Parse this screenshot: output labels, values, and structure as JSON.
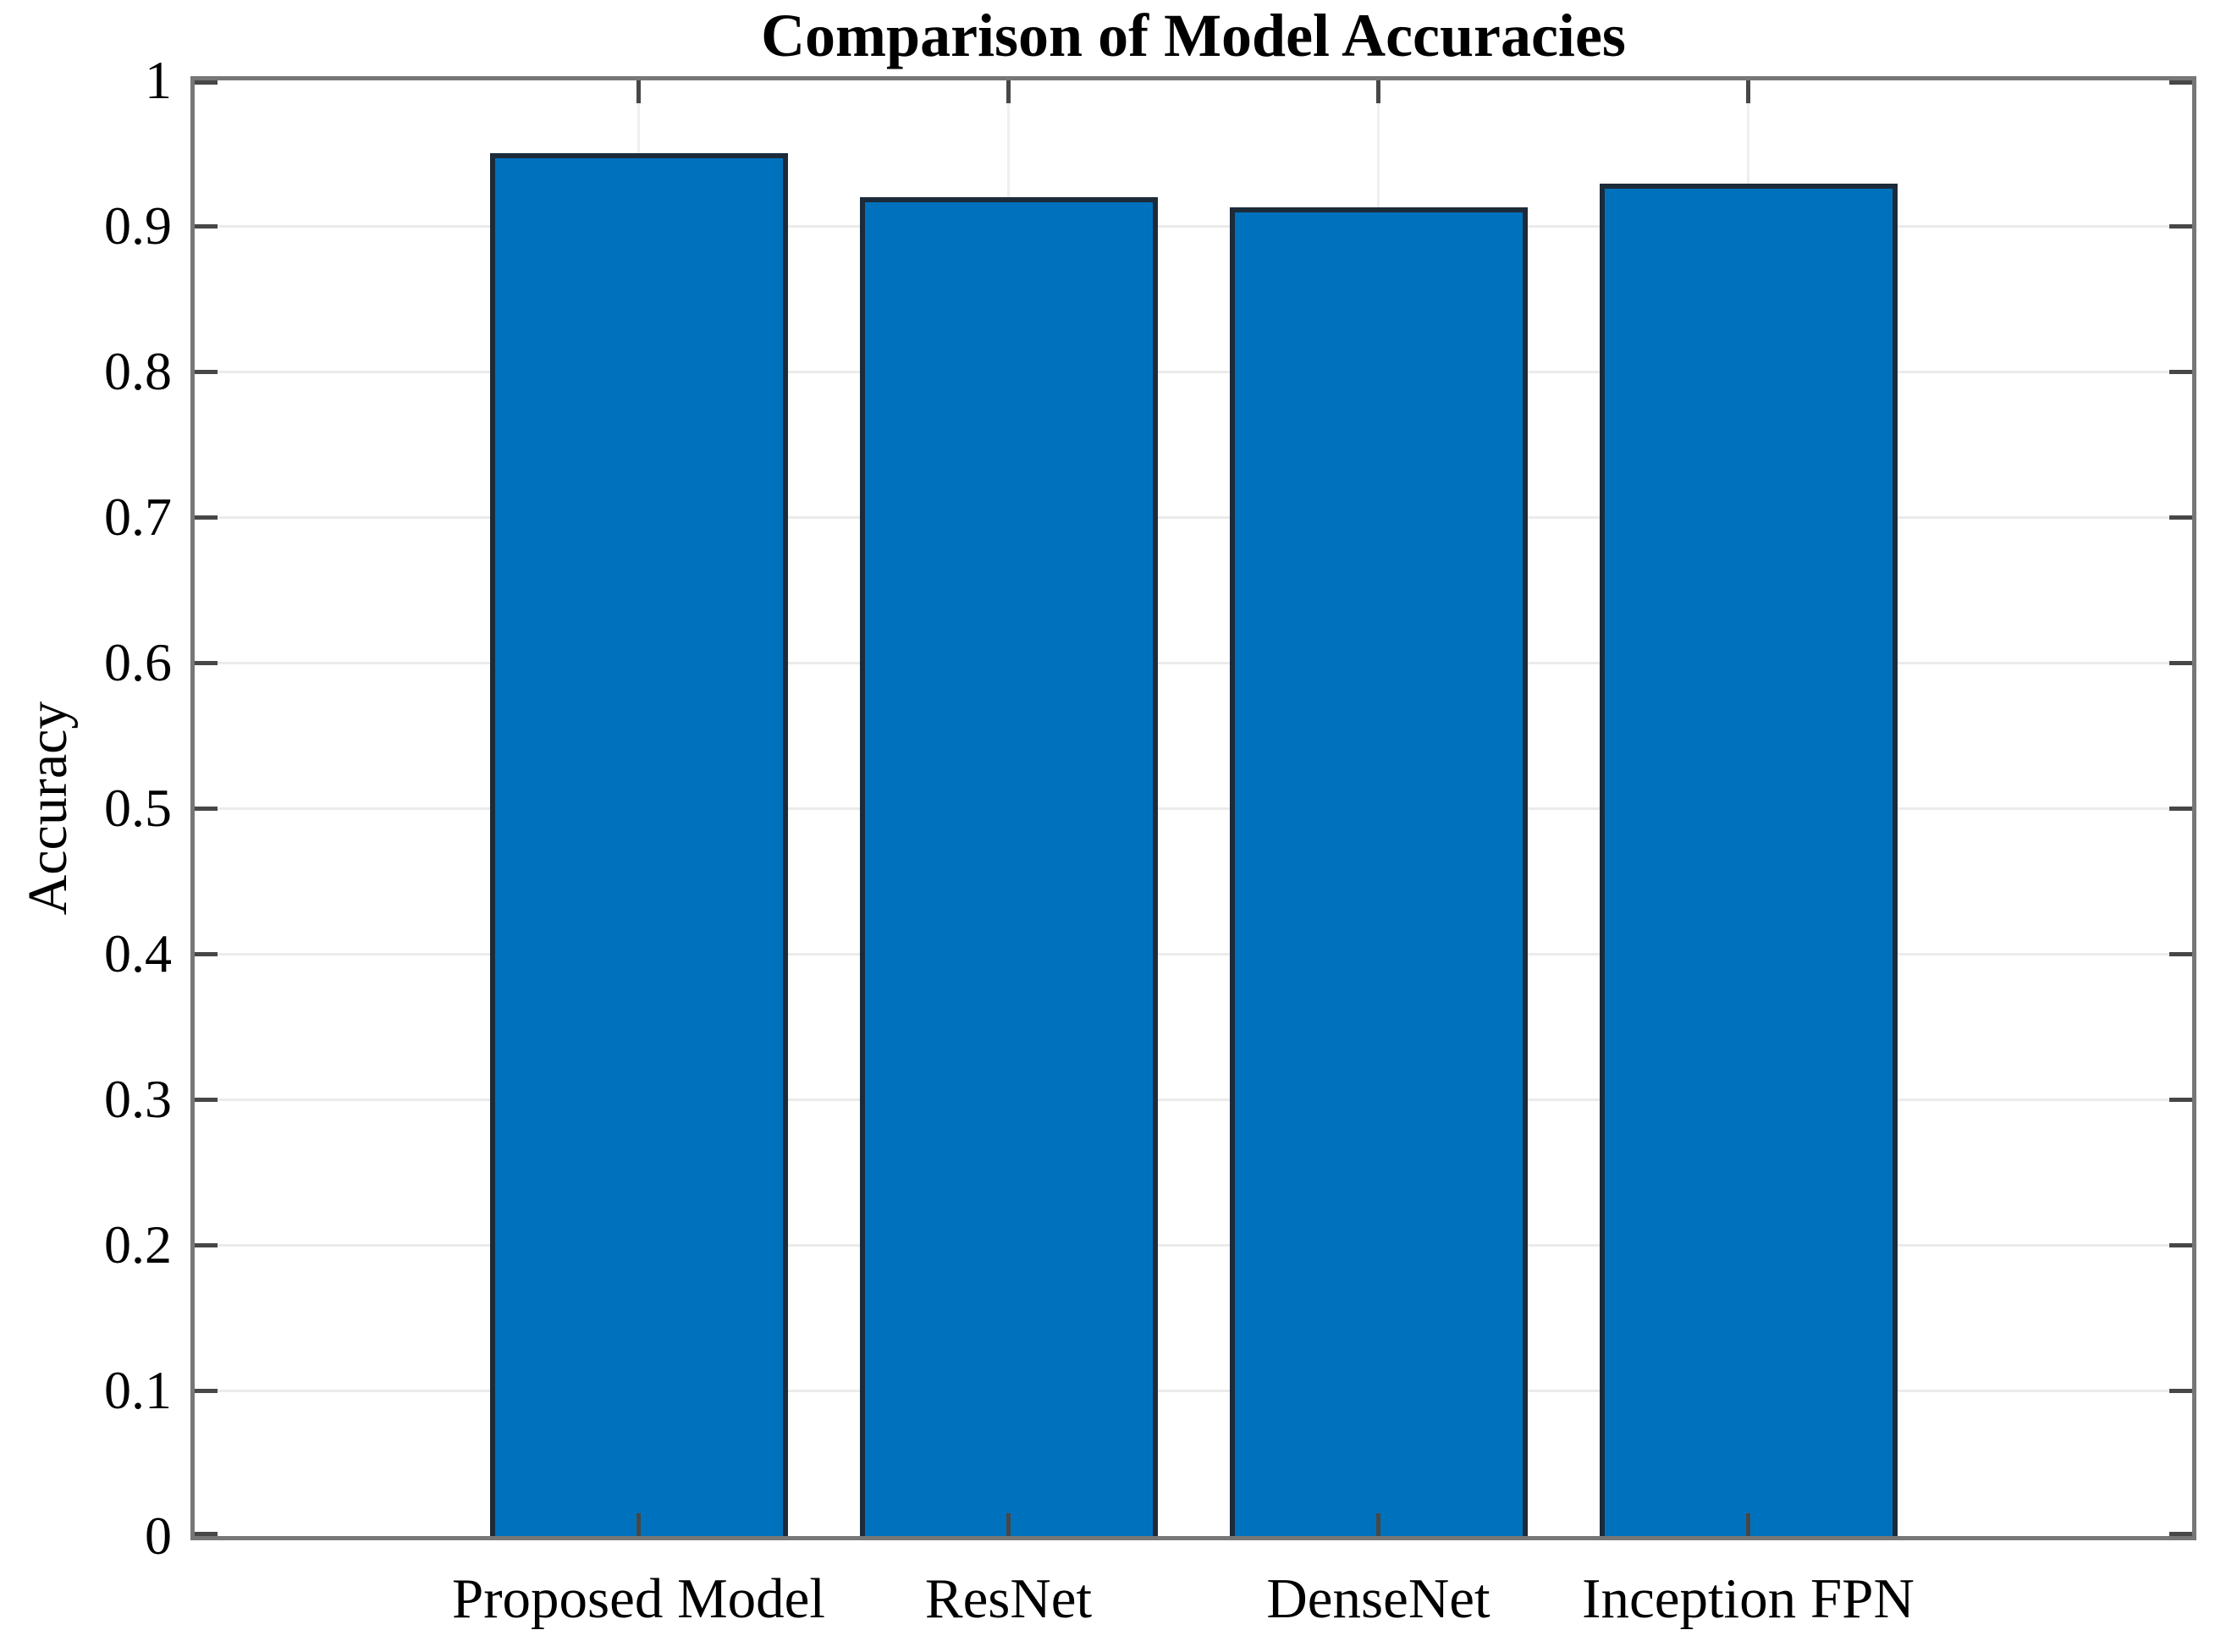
{
  "figure": {
    "background_color": "#ffffff"
  },
  "chart_data": {
    "type": "bar",
    "title": "Comparison of Model Accuracies",
    "xlabel": "",
    "ylabel": "Accuracy",
    "categories": [
      "Proposed Model",
      "ResNet",
      "DenseNet",
      "Inception FPN"
    ],
    "values": [
      0.95,
      0.92,
      0.913,
      0.929
    ],
    "ylim": [
      0,
      1
    ],
    "yticks": [
      0,
      0.1,
      0.2,
      0.3,
      0.4,
      0.5,
      0.6,
      0.7,
      0.8,
      0.9,
      1
    ],
    "ytick_labels": [
      "0",
      "0.1",
      "0.2",
      "0.3",
      "0.4",
      "0.5",
      "0.6",
      "0.7",
      "0.8",
      "0.9",
      "1"
    ],
    "grid": true,
    "box": true,
    "tick_direction": "in",
    "legend": "none",
    "colors": {
      "bar_fill": "#0072BD",
      "bar_edge": "#1c2b3a",
      "grid_line": "#ebebeb",
      "axis_box": "#777777",
      "tick_mark": "#474747",
      "text": "#000000"
    }
  }
}
